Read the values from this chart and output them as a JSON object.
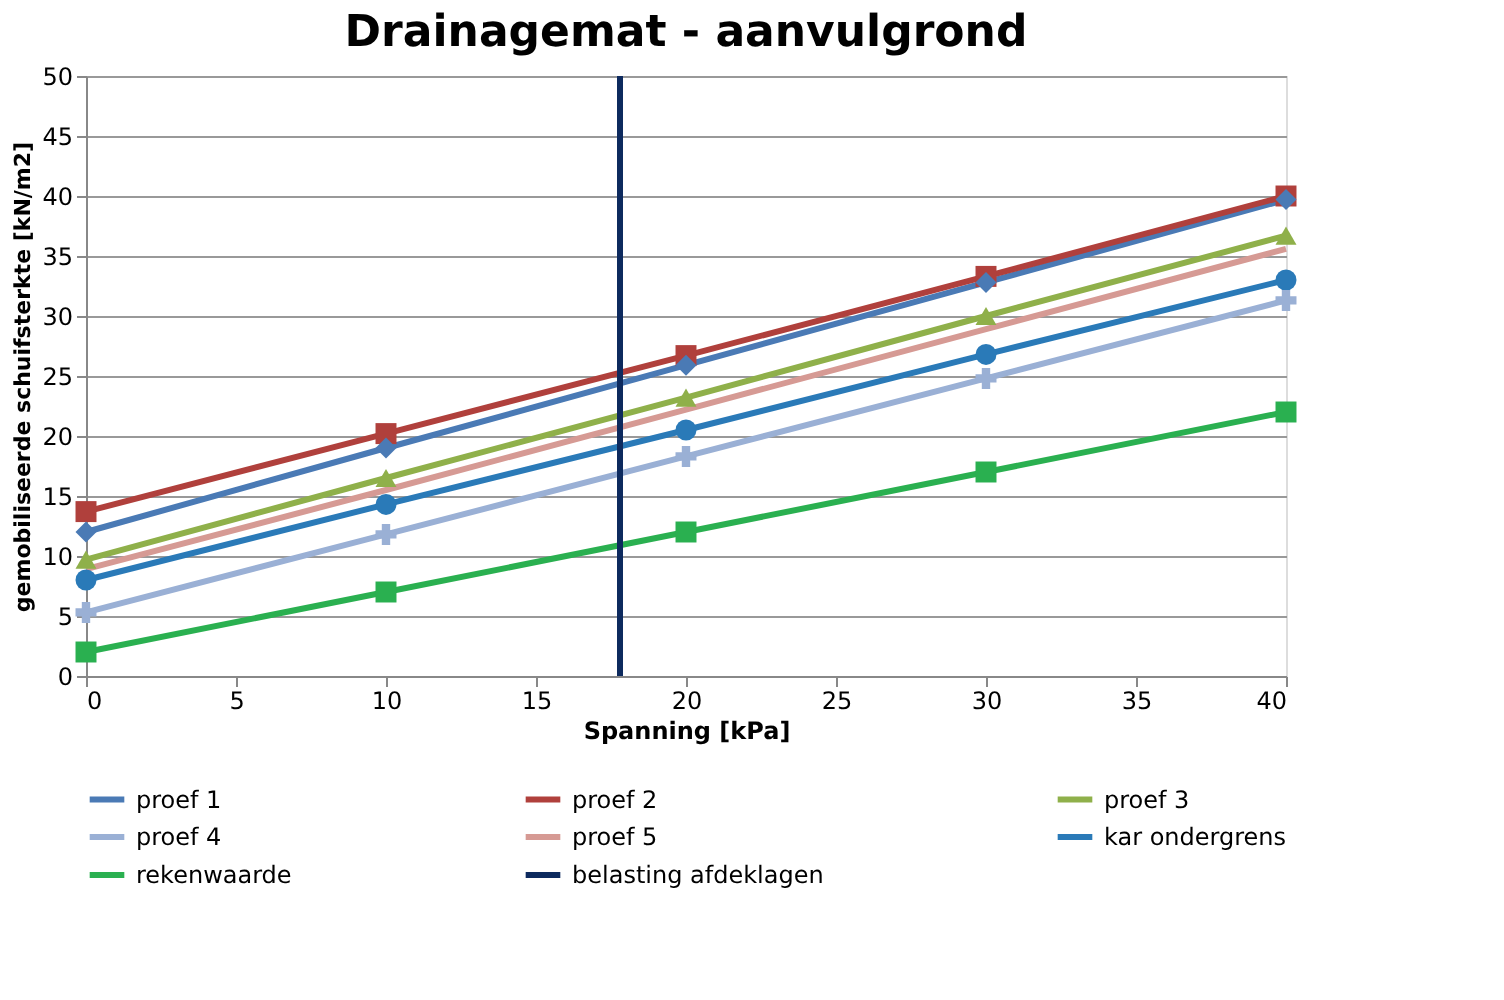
{
  "chart_data": {
    "type": "line",
    "title": "Drainagemat - aanvulgrond",
    "xlabel": "Spanning [kPa]",
    "ylabel": "gemobiliseerde schuifsterkte [kN/m2]",
    "x": [
      0,
      10,
      20,
      30,
      40
    ],
    "xlim": [
      0,
      40
    ],
    "xticks": [
      0,
      5,
      10,
      15,
      20,
      25,
      30,
      35,
      40
    ],
    "ylim": [
      0,
      50
    ],
    "yticks": [
      0,
      5,
      10,
      15,
      20,
      25,
      30,
      35,
      40,
      45,
      50
    ],
    "grid": "y",
    "legend": "bottom",
    "line_style": "solid",
    "series": [
      {
        "name": "proef 1",
        "color": "#4a7ab5",
        "marker": "diamond",
        "values": [
          12,
          19,
          25.9,
          32.8,
          39.7
        ]
      },
      {
        "name": "proef 2",
        "color": "#b0403c",
        "marker": "square",
        "values": [
          13.7,
          20.2,
          26.7,
          33.3,
          40
        ]
      },
      {
        "name": "proef 3",
        "color": "#8fb04a",
        "marker": "triangle",
        "values": [
          9.7,
          16.5,
          23.2,
          30,
          36.7
        ]
      },
      {
        "name": "proef 4",
        "color": "#9ab0d5",
        "marker": "cross",
        "values": [
          5.3,
          11.8,
          18.3,
          24.8,
          31.3
        ]
      },
      {
        "name": "proef 5",
        "color": "#d69a94",
        "marker": "none",
        "values": [
          8.9,
          15.5,
          22.2,
          28.9,
          35.6
        ]
      },
      {
        "name": "kar ondergrens",
        "color": "#2a7ab8",
        "marker": "circle",
        "values": [
          8,
          14.3,
          20.5,
          26.8,
          33
        ]
      },
      {
        "name": "rekenwaarde",
        "color": "#2ab050",
        "marker": "square",
        "values": [
          2,
          7,
          12,
          17,
          22
        ]
      },
      {
        "name": "belasting afdeklagen",
        "color": "#0d2a5e",
        "marker": "none",
        "x": [
          17.8,
          17.8
        ],
        "values": [
          0,
          50
        ]
      }
    ]
  }
}
